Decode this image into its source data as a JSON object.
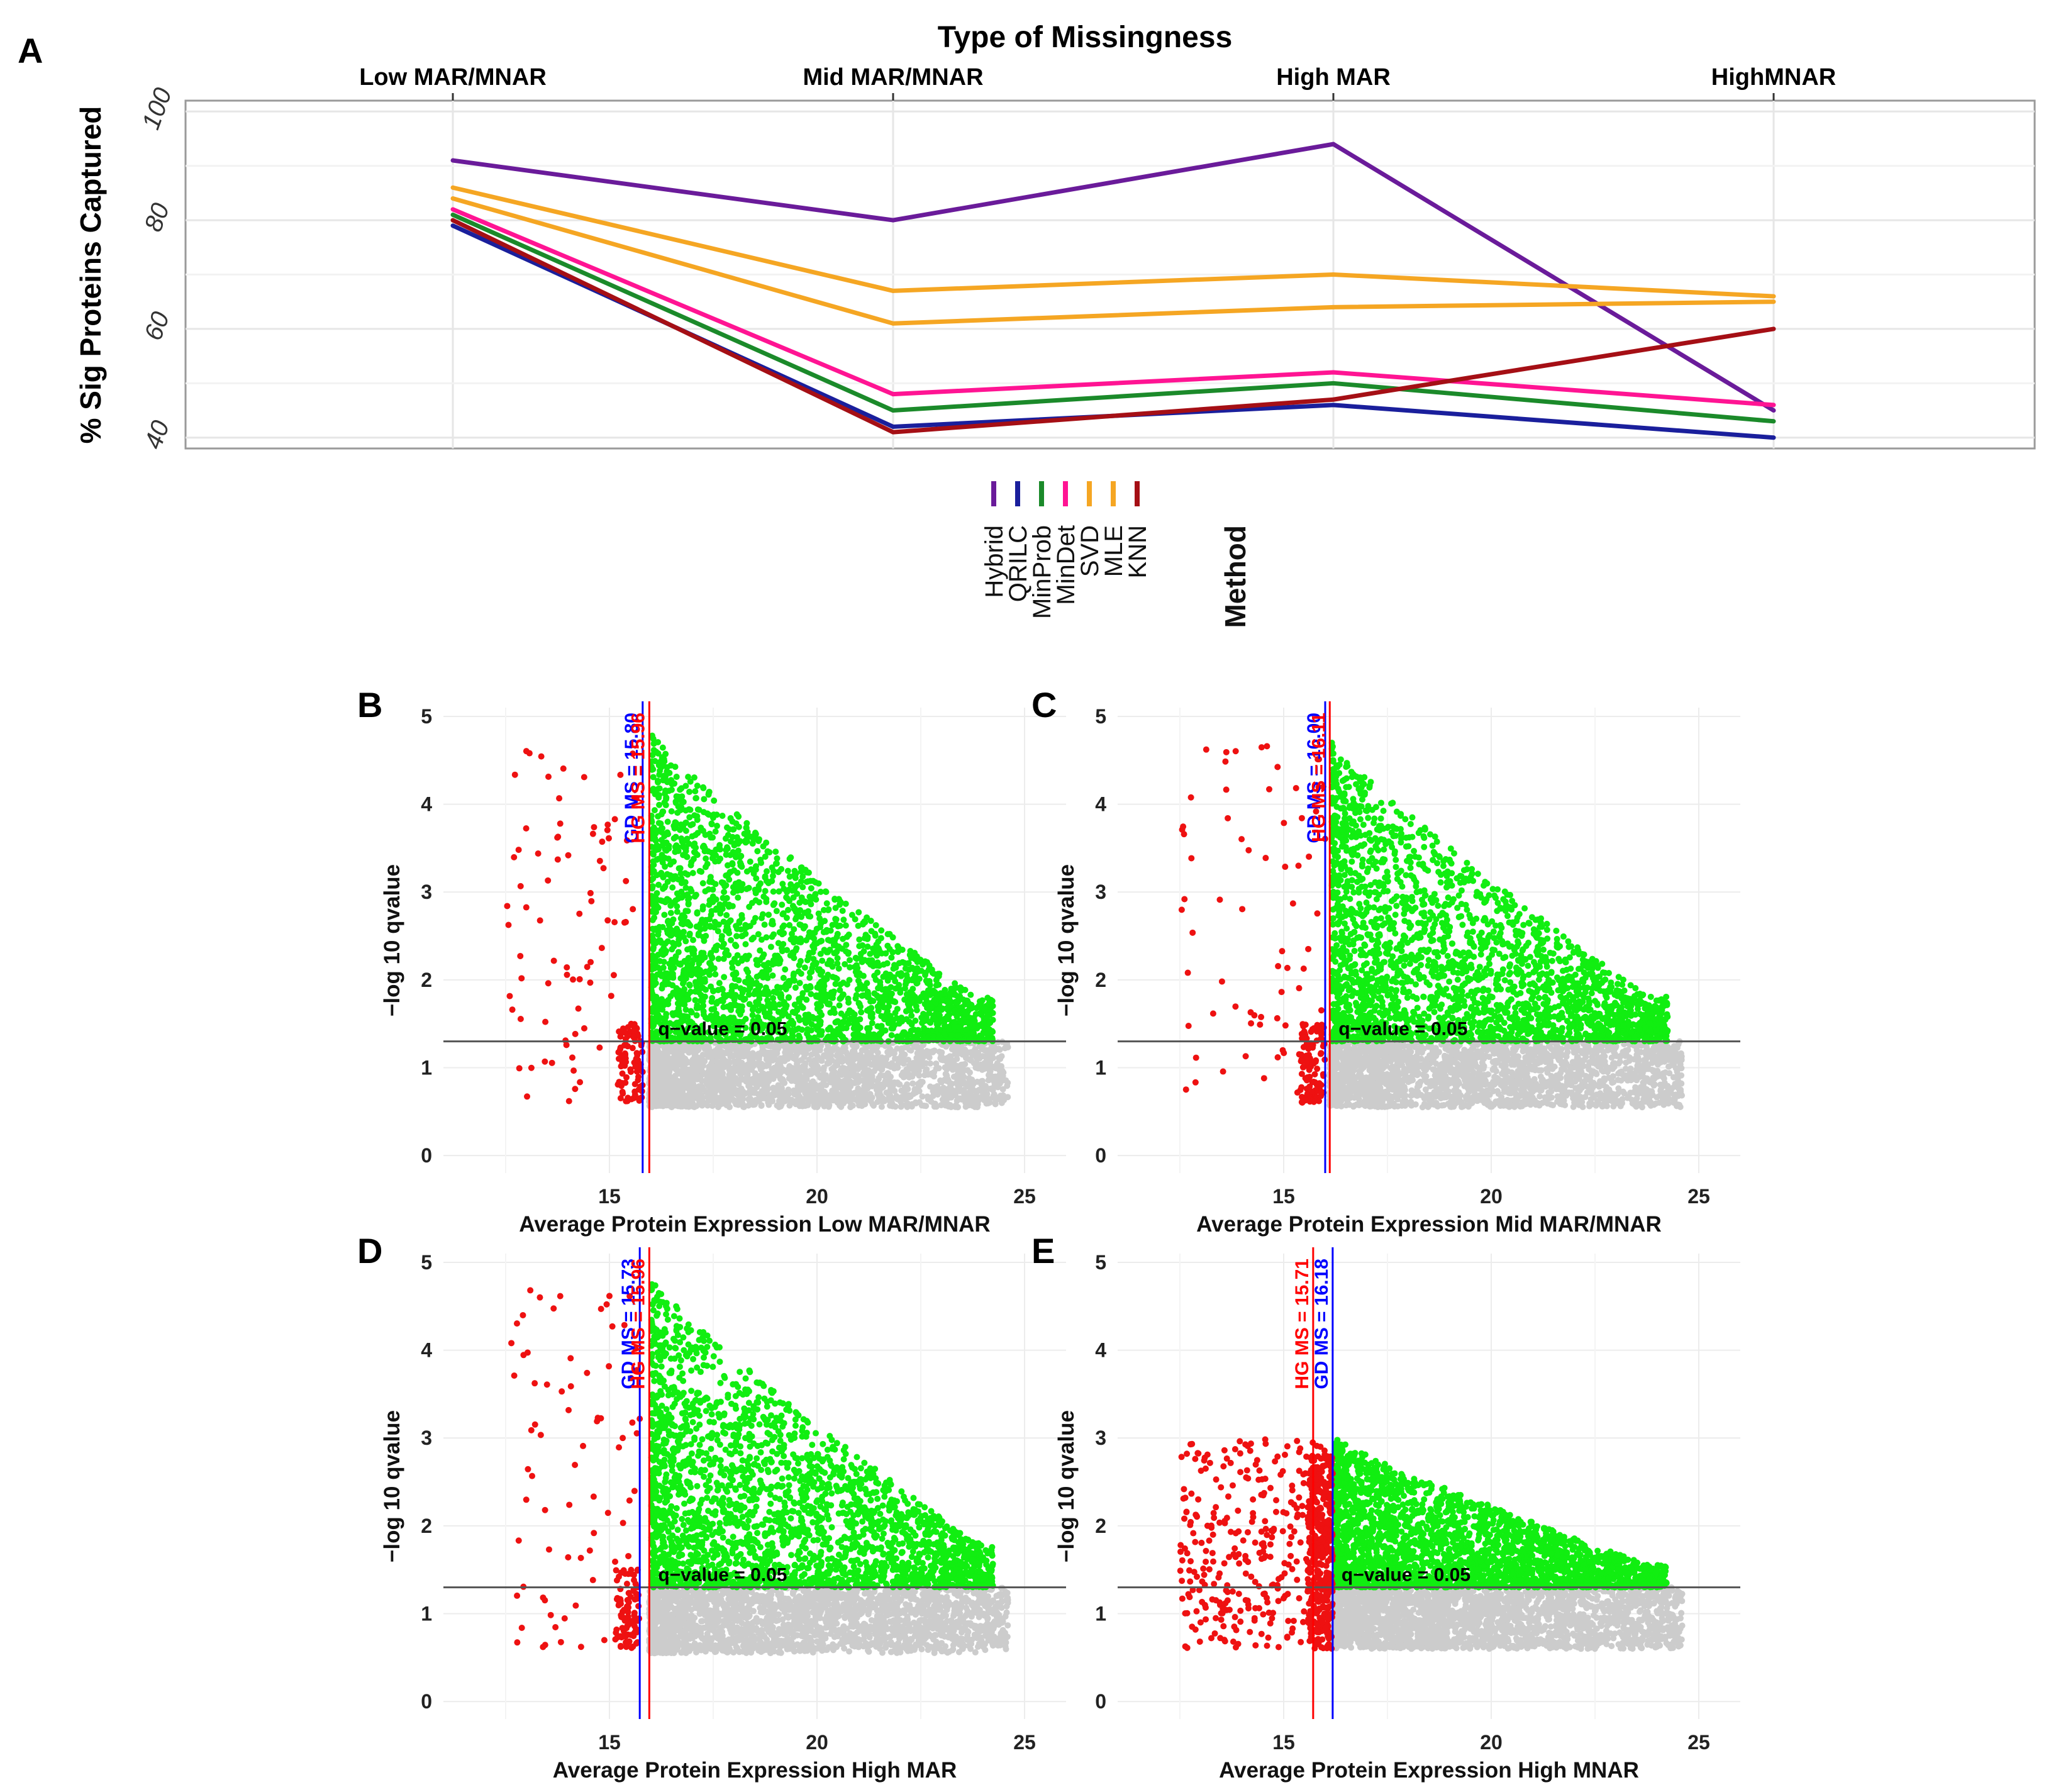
{
  "chart_data": [
    {
      "panel": "A",
      "type": "line",
      "title": "Type of Missingness",
      "xlabel": "",
      "ylabel": "% Sig Proteins Captured",
      "categories": [
        "Low MAR/MNAR",
        "Mid MAR/MNAR",
        "High MAR",
        "HighMNAR"
      ],
      "y_ticks": [
        40,
        60,
        80,
        100
      ],
      "ylim": [
        38,
        102
      ],
      "grid": true,
      "legend": {
        "title": "Method",
        "placement": "bottom",
        "entries": [
          "Hybrid",
          "QRILC",
          "MinProb",
          "MinDet",
          "SVD",
          "MLE",
          "KNN"
        ]
      },
      "series": [
        {
          "name": "Hybrid",
          "color": "#6a1b9a",
          "values": [
            91,
            80,
            94,
            45
          ]
        },
        {
          "name": "QRILC",
          "color": "#1a1f9c",
          "values": [
            79,
            42,
            46,
            40
          ]
        },
        {
          "name": "MinProb",
          "color": "#1b8a2a",
          "values": [
            81,
            45,
            50,
            43
          ]
        },
        {
          "name": "MinDet",
          "color": "#ff1493",
          "values": [
            82,
            48,
            52,
            46
          ]
        },
        {
          "name": "SVD",
          "color": "#f5a623",
          "values": [
            86,
            67,
            70,
            66
          ]
        },
        {
          "name": "MLE",
          "color": "#f5a623",
          "values": [
            84,
            61,
            64,
            65
          ]
        },
        {
          "name": "KNN",
          "color": "#a50f15",
          "values": [
            80,
            41,
            47,
            60
          ]
        }
      ]
    },
    {
      "panel": "B",
      "type": "scatter",
      "xlabel": "Average Protein Expression Low MAR/MNAR",
      "ylabel": "−log 10 qvalue",
      "x_ticks": [
        15,
        20,
        25
      ],
      "y_ticks": [
        0,
        1,
        2,
        3,
        4,
        5
      ],
      "xlim": [
        11,
        26
      ],
      "ylim": [
        -0.2,
        5.1
      ],
      "threshold_y": 1.3,
      "threshold_label": "q−value = 0.05",
      "vlines": [
        {
          "x": 15.8,
          "color": "#0000ff",
          "label": "GD MS = 15.80"
        },
        {
          "x": 15.96,
          "color": "#ff0000",
          "label": "HG MS = 15.96"
        }
      ],
      "colors": {
        "low": "#ee1111",
        "sig": "#11ee11",
        "ns": "#cccccc"
      },
      "point_summary": {
        "sig_max_y": 4.8,
        "ns_y_range": [
          0.55,
          1.3
        ],
        "low_expression_x_range": [
          12.5,
          15.8
        ]
      }
    },
    {
      "panel": "C",
      "type": "scatter",
      "xlabel": "Average Protein Expression Mid MAR/MNAR",
      "ylabel": "−log 10 qvalue",
      "x_ticks": [
        15,
        20,
        25
      ],
      "y_ticks": [
        0,
        1,
        2,
        3,
        4,
        5
      ],
      "xlim": [
        11,
        26
      ],
      "ylim": [
        -0.2,
        5.1
      ],
      "threshold_y": 1.3,
      "threshold_label": "q−value = 0.05",
      "vlines": [
        {
          "x": 16.0,
          "color": "#0000ff",
          "label": "GD MS = 16.00"
        },
        {
          "x": 16.11,
          "color": "#ff0000",
          "label": "HG MS = 16.11"
        }
      ],
      "colors": {
        "low": "#ee1111",
        "sig": "#11ee11",
        "ns": "#cccccc"
      },
      "point_summary": {
        "sig_max_y": 4.7,
        "ns_y_range": [
          0.55,
          1.3
        ],
        "low_expression_x_range": [
          12.5,
          16.0
        ]
      }
    },
    {
      "panel": "D",
      "type": "scatter",
      "xlabel": "Average Protein Expression High MAR",
      "ylabel": "−log 10 qvalue",
      "x_ticks": [
        15,
        20,
        25
      ],
      "y_ticks": [
        0,
        1,
        2,
        3,
        4,
        5
      ],
      "xlim": [
        11,
        26
      ],
      "ylim": [
        -0.2,
        5.1
      ],
      "threshold_y": 1.3,
      "threshold_label": "q−value = 0.05",
      "vlines": [
        {
          "x": 15.73,
          "color": "#0000ff",
          "label": "GD MS = 15.73"
        },
        {
          "x": 15.96,
          "color": "#ff0000",
          "label": "HG MS = 15.96"
        }
      ],
      "colors": {
        "low": "#ee1111",
        "sig": "#11ee11",
        "ns": "#cccccc"
      },
      "point_summary": {
        "sig_max_y": 4.8,
        "ns_y_range": [
          0.55,
          1.3
        ],
        "low_expression_x_range": [
          12.5,
          15.73
        ]
      }
    },
    {
      "panel": "E",
      "type": "scatter",
      "xlabel": "Average Protein Expression High MNAR",
      "ylabel": "−log 10 qvalue",
      "x_ticks": [
        15,
        20,
        25
      ],
      "y_ticks": [
        0,
        1,
        2,
        3,
        4,
        5
      ],
      "xlim": [
        11,
        26
      ],
      "ylim": [
        -0.2,
        5.1
      ],
      "threshold_y": 1.3,
      "threshold_label": "q−value = 0.05",
      "vlines": [
        {
          "x": 15.71,
          "color": "#ff0000",
          "label": "HG MS = 15.71"
        },
        {
          "x": 16.18,
          "color": "#0000ff",
          "label": "GD MS = 16.18"
        }
      ],
      "colors": {
        "low": "#ee1111",
        "sig": "#11ee11",
        "ns": "#cccccc"
      },
      "point_summary": {
        "sig_max_y": 3.0,
        "ns_y_range": [
          0.6,
          1.3
        ],
        "low_expression_x_range": [
          12.5,
          16.18
        ]
      }
    }
  ]
}
